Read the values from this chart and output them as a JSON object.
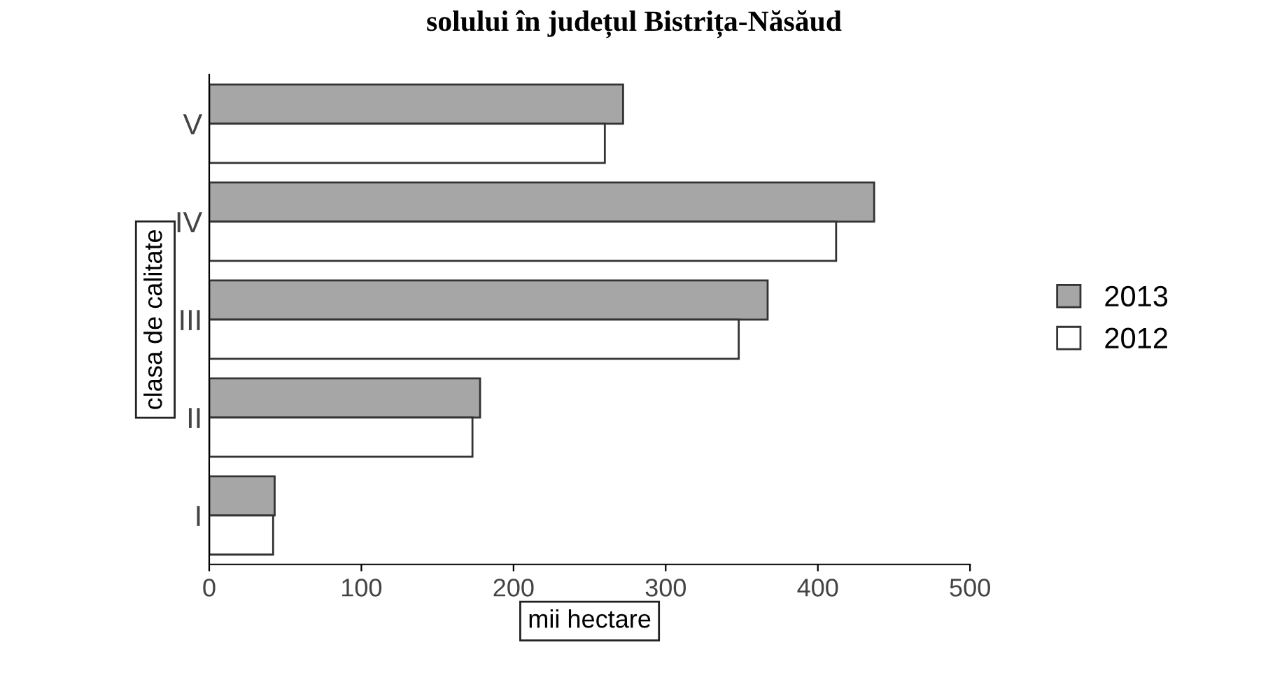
{
  "chart_data": {
    "type": "bar",
    "orientation": "horizontal",
    "title": "solului în județul Bistrița-Năsăud",
    "xlabel": "mii hectare",
    "ylabel": "clasa de calitate",
    "categories": [
      "V",
      "IV",
      "III",
      "II",
      "I"
    ],
    "series": [
      {
        "name": "2013",
        "color": "#a6a6a6",
        "values": [
          272,
          437,
          367,
          178,
          43
        ]
      },
      {
        "name": "2012",
        "color": "#ffffff",
        "values": [
          260,
          412,
          348,
          173,
          42
        ]
      }
    ],
    "xlim": [
      0,
      500
    ],
    "xticks": [
      0,
      100,
      200,
      300,
      400,
      500
    ],
    "grid": false,
    "legend": "right"
  }
}
